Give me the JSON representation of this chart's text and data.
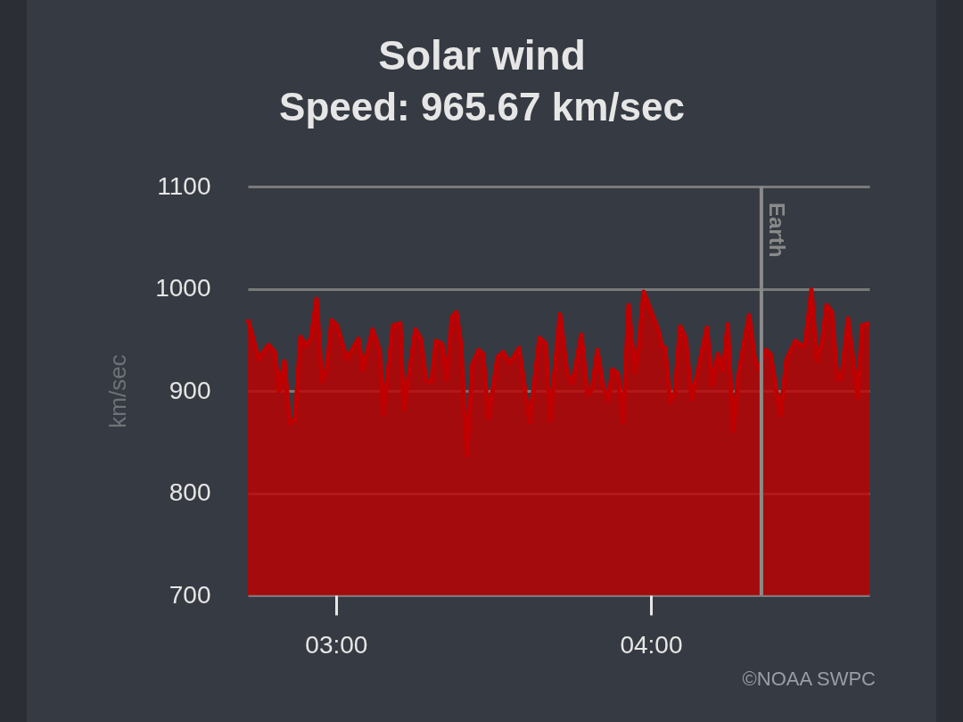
{
  "chart_data": {
    "type": "area",
    "title": "Solar wind",
    "subtitle": "Speed: 965.67 km/sec",
    "ylabel": "km/sec",
    "annotations": [
      "©NOAA SWPC"
    ],
    "xlim": [
      2.72,
      4.694
    ],
    "xticks": [
      {
        "value": 3,
        "label": "03:00"
      },
      {
        "value": 4,
        "label": "04:00"
      }
    ],
    "ylim": [
      700,
      1100
    ],
    "yticks": [
      700,
      800,
      900,
      1000,
      1100
    ],
    "grid": "y",
    "legend": false,
    "ref_lines": [
      {
        "axis": "x",
        "value": 4.351,
        "label": "Earth",
        "color": "#8a8a8a"
      }
    ],
    "series": [
      {
        "color": "#c00000",
        "x": [
          2.72,
          2.754,
          2.785,
          2.805,
          2.819,
          2.836,
          2.853,
          2.87,
          2.887,
          2.904,
          2.921,
          2.938,
          2.955,
          2.969,
          2.986,
          3.003,
          3.034,
          3.071,
          3.085,
          3.116,
          3.139,
          3.15,
          3.181,
          3.204,
          3.215,
          3.252,
          3.269,
          3.286,
          3.303,
          3.317,
          3.337,
          3.351,
          3.368,
          3.382,
          3.397,
          3.416,
          3.433,
          3.453,
          3.467,
          3.484,
          3.513,
          3.53,
          3.552,
          3.581,
          3.615,
          3.646,
          3.666,
          3.68,
          3.711,
          3.734,
          3.751,
          3.779,
          3.799,
          3.813,
          3.83,
          3.847,
          3.864,
          3.878,
          3.895,
          3.912,
          3.929,
          3.949,
          3.96,
          3.977,
          4.025,
          4.034,
          4.045,
          4.062,
          4.076,
          4.093,
          4.11,
          4.13,
          4.147,
          4.178,
          4.195,
          4.212,
          4.229,
          4.244,
          4.261,
          4.278,
          4.312,
          4.329,
          4.343,
          4.365,
          4.38,
          4.411,
          4.431,
          4.459,
          4.479,
          4.49,
          4.51,
          4.527,
          4.544,
          4.558,
          4.575,
          4.592,
          4.606,
          4.626,
          4.657,
          4.671,
          4.694
        ],
        "values": [
          970,
          931,
          945,
          938,
          900,
          929,
          868,
          873,
          953,
          944,
          952,
          990,
          909,
          920,
          969,
          964,
          931,
          951,
          920,
          960,
          939,
          877,
          964,
          966,
          882,
          960,
          951,
          910,
          909,
          949,
          946,
          911,
          972,
          977,
          945,
          837,
          926,
          940,
          936,
          873,
          933,
          938,
          927,
          942,
          869,
          952,
          946,
          871,
          975,
          917,
          907,
          955,
          896,
          902,
          940,
          907,
          890,
          921,
          917,
          869,
          984,
          918,
          940,
          997,
          958,
          944,
          942,
          889,
          898,
          963,
          952,
          892,
          916,
          962,
          905,
          936,
          920,
          965,
          861,
          916,
          974,
          933,
          920,
          940,
          936,
          876,
          931,
          949,
          944,
          946,
          999,
          929,
          949,
          984,
          977,
          911,
          913,
          971,
          894,
          964,
          966
        ]
      }
    ]
  }
}
